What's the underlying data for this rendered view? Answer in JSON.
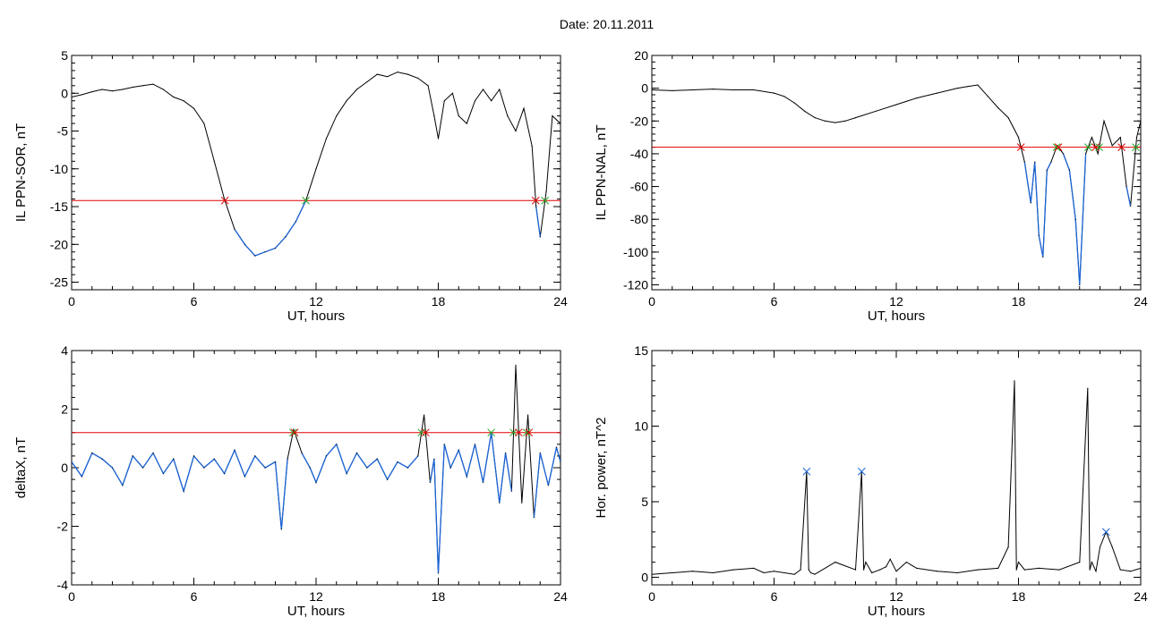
{
  "header": {
    "title": "Date:  20.11.2011"
  },
  "colors": {
    "axis": "#000000",
    "trace": "#000000",
    "below_threshold": "#1a64d6",
    "threshold": "#e00000",
    "marker_red": "#e00000",
    "marker_green": "#22aa22",
    "marker_blue": "#1a64d6",
    "marker_dark": "#660022"
  },
  "chart_data": [
    {
      "id": "p1",
      "type": "line",
      "ylabel": "IL PPN-SOR, nT",
      "xlabel": "UT, hours",
      "xlim": [
        0,
        24
      ],
      "ylim": [
        -26,
        5
      ],
      "xticks": [
        0,
        6,
        12,
        18,
        24
      ],
      "yticks": [
        5,
        0,
        -5,
        -10,
        -15,
        -20,
        -25
      ],
      "threshold": -14.2,
      "series": [
        {
          "x": [
            0,
            0.5,
            1,
            1.5,
            2,
            2.5,
            3,
            3.5,
            4,
            4.5,
            5,
            5.5,
            6,
            6.5,
            7,
            7.5,
            8,
            8.5,
            9,
            9.5,
            10,
            10.5,
            11,
            11.5,
            12,
            12.5,
            13,
            13.5,
            14,
            14.5,
            15,
            15.5,
            16,
            16.5,
            17,
            17.5,
            17.8,
            18,
            18.3,
            18.7,
            19,
            19.4,
            19.8,
            20.2,
            20.6,
            21,
            21.4,
            21.8,
            22.2,
            22.6,
            22.8,
            23,
            23.3,
            23.6,
            24
          ],
          "y": [
            -0.5,
            -0.2,
            0.2,
            0.5,
            0.3,
            0.5,
            0.8,
            1,
            1.2,
            0.5,
            -0.5,
            -1,
            -2,
            -4,
            -9,
            -14,
            -18,
            -20,
            -21.5,
            -21,
            -20.5,
            -19,
            -17,
            -14.2,
            -10,
            -6,
            -3,
            -1,
            0.5,
            1.5,
            2.5,
            2.2,
            2.8,
            2.5,
            2,
            1,
            -3,
            -6,
            -1,
            0,
            -3,
            -4,
            -1,
            0.5,
            -1,
            0.5,
            -3,
            -5,
            -2,
            -7,
            -15,
            -19,
            -13,
            -3,
            -4
          ]
        }
      ]
    },
    {
      "id": "p2",
      "type": "line",
      "ylabel": "IL PPN-NAL, nT",
      "xlabel": "UT, hours",
      "xlim": [
        0,
        24
      ],
      "ylim": [
        -123,
        20
      ],
      "xticks": [
        0,
        6,
        12,
        18,
        24
      ],
      "yticks": [
        20,
        0,
        -20,
        -40,
        -60,
        -80,
        -100,
        -120
      ],
      "threshold": -36,
      "series": [
        {
          "x": [
            0,
            1,
            2,
            3,
            4,
            5,
            6,
            6.5,
            7,
            7.5,
            8,
            8.5,
            9,
            9.5,
            10,
            11,
            12,
            13,
            14,
            15,
            15.5,
            16,
            16.5,
            17,
            17.5,
            18,
            18.3,
            18.6,
            18.8,
            19,
            19.2,
            19.4,
            19.6,
            19.9,
            20.2,
            20.5,
            20.8,
            21,
            21.3,
            21.6,
            21.9,
            22.2,
            22.6,
            23,
            23.3,
            23.5,
            23.8,
            24
          ],
          "y": [
            -1,
            -1.5,
            -1,
            -0.5,
            -1,
            -1,
            -3,
            -5,
            -9,
            -14,
            -18,
            -20,
            -21,
            -20,
            -18,
            -14,
            -10,
            -6,
            -3,
            0,
            1,
            2,
            -5,
            -12,
            -18,
            -30,
            -45,
            -70,
            -45,
            -90,
            -103,
            -50,
            -45,
            -35,
            -40,
            -50,
            -80,
            -120,
            -40,
            -30,
            -40,
            -20,
            -35,
            -30,
            -60,
            -72,
            -30,
            -20
          ]
        }
      ]
    },
    {
      "id": "p3",
      "type": "line",
      "ylabel": "deltaX, nT",
      "xlabel": "UT, hours",
      "xlim": [
        0,
        24
      ],
      "ylim": [
        -4,
        4
      ],
      "xticks": [
        0,
        6,
        12,
        18,
        24
      ],
      "yticks": [
        4,
        2,
        0,
        -2,
        -4
      ],
      "threshold": 1.2,
      "series": [
        {
          "x": [
            0,
            0.5,
            1,
            1.5,
            2,
            2.5,
            3,
            3.5,
            4,
            4.5,
            5,
            5.5,
            6,
            6.5,
            7,
            7.5,
            8,
            8.5,
            9,
            9.5,
            10,
            10.3,
            10.6,
            10.9,
            11.3,
            11.7,
            12,
            12.5,
            13,
            13.5,
            14,
            14.5,
            15,
            15.5,
            16,
            16.5,
            17,
            17.3,
            17.6,
            17.8,
            18,
            18.3,
            18.6,
            19,
            19.4,
            19.8,
            20.2,
            20.6,
            21,
            21.3,
            21.6,
            21.8,
            22.1,
            22.4,
            22.7,
            23,
            23.4,
            23.8,
            24
          ],
          "y": [
            0.2,
            -0.3,
            0.5,
            0.3,
            0,
            -0.6,
            0.4,
            0,
            0.5,
            -0.2,
            0.3,
            -0.8,
            0.4,
            0,
            0.3,
            -0.2,
            0.6,
            -0.3,
            0.4,
            0,
            0.2,
            -2.1,
            0.3,
            1.3,
            0.5,
            0,
            -0.5,
            0.4,
            0.8,
            -0.2,
            0.5,
            0,
            0.3,
            -0.4,
            0.2,
            0,
            0.4,
            1.8,
            -0.5,
            0.3,
            -3.6,
            0.8,
            0,
            0.6,
            -0.3,
            0.8,
            -0.5,
            1.2,
            -1.2,
            0.5,
            -0.8,
            3.5,
            -1.2,
            1.8,
            -1.7,
            0.5,
            -0.6,
            0.7,
            0.2
          ]
        }
      ]
    },
    {
      "id": "p4",
      "type": "line",
      "ylabel": "Hor. power, nT^2",
      "xlabel": "UT, hours",
      "xlim": [
        0,
        24
      ],
      "ylim": [
        -0.5,
        15
      ],
      "xticks": [
        0,
        6,
        12,
        18,
        24
      ],
      "yticks": [
        15,
        10,
        5,
        0
      ],
      "threshold": null,
      "series": [
        {
          "x": [
            0,
            1,
            2,
            3,
            4,
            5,
            5.5,
            6,
            7,
            7.3,
            7.6,
            7.7,
            7.8,
            8,
            9,
            10,
            10.3,
            10.4,
            10.5,
            10.8,
            11.2,
            11.5,
            11.7,
            12,
            12.5,
            13,
            14,
            15,
            16,
            17,
            17.5,
            17.8,
            17.9,
            18,
            18.3,
            19,
            20,
            21,
            21.4,
            21.5,
            21.6,
            21.8,
            22,
            22.3,
            22.6,
            23,
            23.5,
            24
          ],
          "y": [
            0.2,
            0.3,
            0.4,
            0.3,
            0.5,
            0.6,
            0.3,
            0.4,
            0.2,
            0.5,
            7,
            0.5,
            0.3,
            0.2,
            1,
            0.5,
            7,
            0.5,
            1,
            0.3,
            0.5,
            0.7,
            1.2,
            0.4,
            1,
            0.6,
            0.4,
            0.3,
            0.5,
            0.6,
            2,
            13,
            0.5,
            1,
            0.5,
            0.6,
            0.5,
            1,
            12.5,
            0.5,
            1,
            0.4,
            2,
            3,
            2,
            0.5,
            0.4,
            0.6
          ]
        }
      ]
    }
  ]
}
